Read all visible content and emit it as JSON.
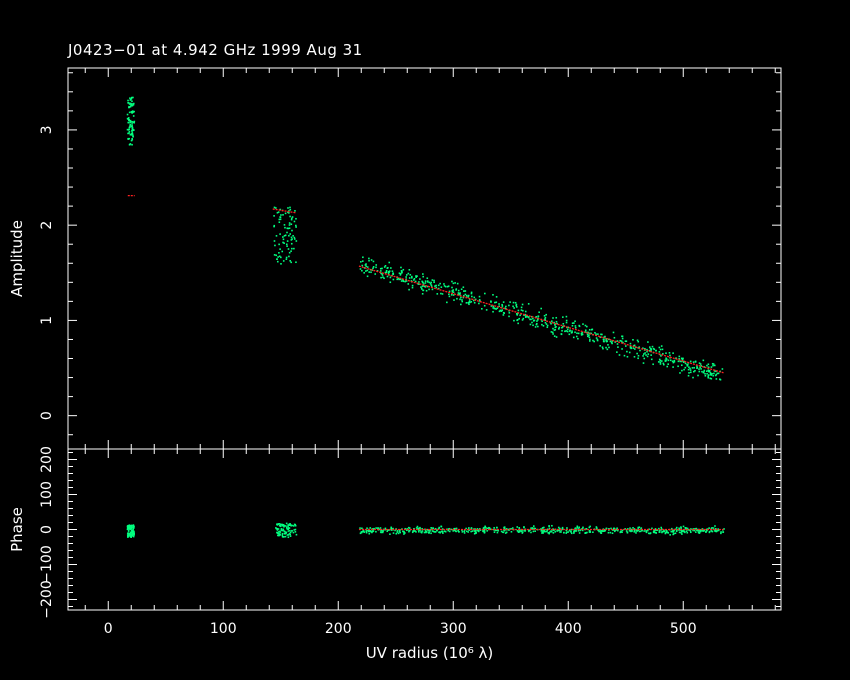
{
  "chart_data": [
    {
      "type": "scatter",
      "title": "J0423−01 at 4.942 GHz 1999 Aug 31",
      "xlabel": "UV radius  (10⁶ λ)",
      "ylabel": "Amplitude",
      "xlim": [
        -35,
        585
      ],
      "ylim": [
        -0.35,
        3.65
      ],
      "xticks": [
        0,
        100,
        200,
        300,
        400,
        500
      ],
      "xtick_labels": [
        "0",
        "100",
        "200",
        "300",
        "400",
        "500"
      ],
      "yticks": [
        0,
        1,
        2,
        3
      ],
      "ytick_labels": [
        "0",
        "1",
        "2",
        "3"
      ],
      "grid": false,
      "series": [
        {
          "role": "data",
          "color": "#00ff7f",
          "clusters": [
            {
              "x": [
                16,
                22
              ],
              "y": [
                2.85,
                3.35
              ]
            },
            {
              "x": [
                143,
                163
              ],
              "y": [
                1.6,
                2.2
              ]
            },
            {
              "x": [
                218,
                535
              ],
              "y_start": 1.6,
              "y_end": 0.42,
              "scatter": 0.15
            }
          ]
        },
        {
          "role": "model",
          "color": "#ff2020",
          "segments": [
            {
              "x": [
                17,
                23
              ],
              "y": [
                2.31,
                2.31
              ]
            },
            {
              "x": [
                143,
                163
              ],
              "y": [
                2.17,
                2.13
              ]
            },
            {
              "x": [
                218,
                535
              ],
              "y": [
                1.57,
                0.45
              ]
            }
          ]
        }
      ]
    },
    {
      "type": "scatter",
      "xlabel": "UV radius  (10⁶ λ)",
      "ylabel": "Phase",
      "xlim": [
        -35,
        585
      ],
      "ylim": [
        -230,
        230
      ],
      "xticks": [
        0,
        100,
        200,
        300,
        400,
        500
      ],
      "xtick_labels": [
        "0",
        "100",
        "200",
        "300",
        "400",
        "500"
      ],
      "yticks": [
        -200,
        -100,
        0,
        100,
        200
      ],
      "ytick_labels": [
        "−200",
        "−100",
        "0",
        "100",
        "200"
      ],
      "grid": false,
      "series": [
        {
          "role": "data",
          "color": "#00ff7f",
          "clusters": [
            {
              "x": [
                16,
                22
              ],
              "y": [
                -20,
                15
              ]
            },
            {
              "x": [
                145,
                163
              ],
              "y": [
                -20,
                20
              ]
            },
            {
              "x": [
                218,
                535
              ],
              "y_center": 0,
              "scatter": 15
            }
          ]
        },
        {
          "role": "model",
          "color": "#ff2020",
          "segments": [
            {
              "x": [
                218,
                535
              ],
              "y": [
                0,
                0
              ]
            }
          ]
        }
      ]
    }
  ]
}
